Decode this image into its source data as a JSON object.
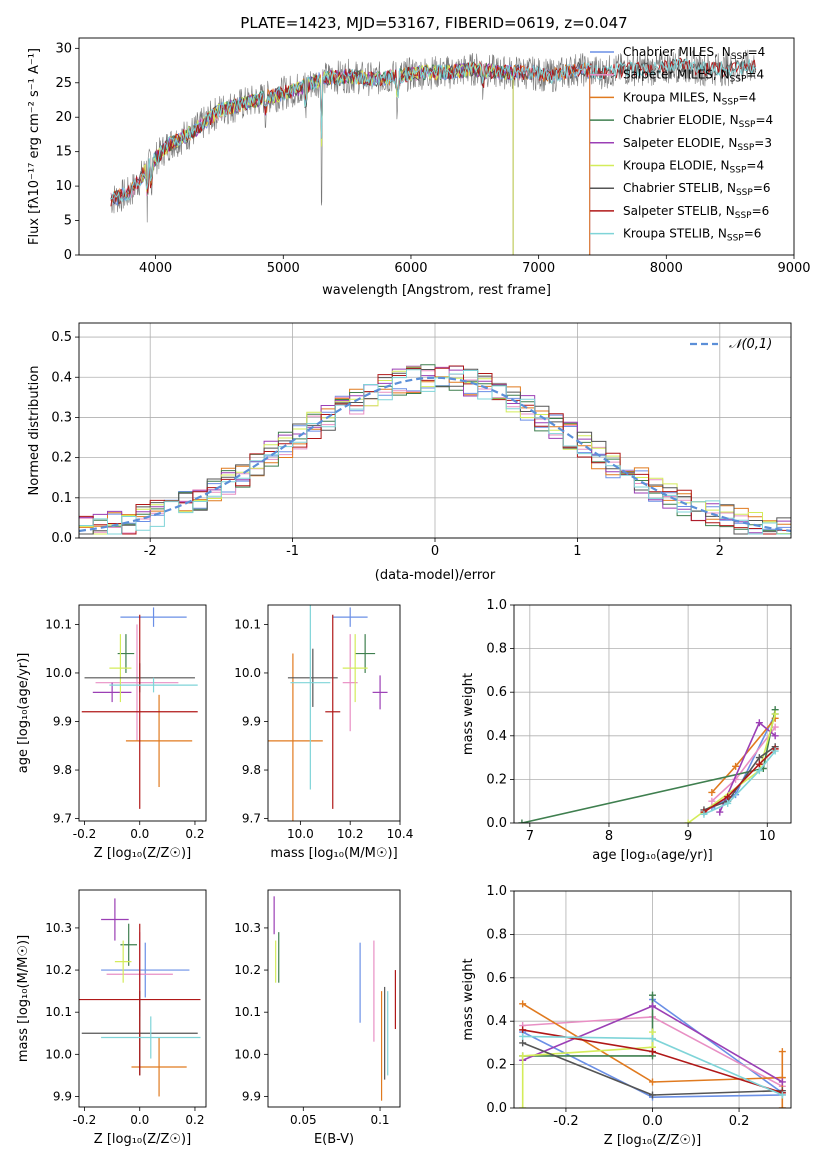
{
  "figure_title": "PLATE=1423, MJD=53167, FIBERID=0619, z=0.047",
  "colors": {
    "Chabrier MILES": "#6a8fe6",
    "Salpeter MILES": "#e88fc4",
    "Kroupa MILES": "#e07a1f",
    "Chabrier ELODIE": "#3f7f4f",
    "Salpeter ELODIE": "#9b3fb5",
    "Kroupa ELODIE": "#d4ec5a",
    "Chabrier STELIB": "#555555",
    "Salpeter STELIB": "#b01818",
    "Kroupa STELIB": "#7fd4d8"
  },
  "chart_data": [
    {
      "id": "spectrum",
      "type": "line",
      "title": "PLATE=1423, MJD=53167, FIBERID=0619, z=0.047",
      "xlabel": "wavelength [Angstrom, rest frame]",
      "ylabel": "Flux [fλ10⁻¹⁷ erg cm⁻² s⁻¹ A⁻¹]",
      "xlim": [
        3400,
        9000
      ],
      "ylim": [
        0,
        31.5
      ],
      "xticks": [
        4000,
        5000,
        6000,
        7000,
        8000,
        9000
      ],
      "yticks": [
        0,
        5,
        10,
        15,
        20,
        25,
        30
      ],
      "legend_position": "upper-right",
      "legend": [
        {
          "model": "Chabrier MILES",
          "label": "Chabrier MILES, N",
          "sub": "SSP",
          "suffix": "=4"
        },
        {
          "model": "Salpeter MILES",
          "label": "Salpeter MILES, N",
          "sub": "SSP",
          "suffix": "=4"
        },
        {
          "model": "Kroupa MILES",
          "label": "Kroupa MILES, N",
          "sub": "SSP",
          "suffix": "=4"
        },
        {
          "model": "Chabrier ELODIE",
          "label": "Chabrier ELODIE, N",
          "sub": "SSP",
          "suffix": "=4"
        },
        {
          "model": "Salpeter ELODIE",
          "label": "Salpeter ELODIE, N",
          "sub": "SSP",
          "suffix": "=3"
        },
        {
          "model": "Kroupa ELODIE",
          "label": "Kroupa ELODIE, N",
          "sub": "SSP",
          "suffix": "=4"
        },
        {
          "model": "Chabrier STELIB",
          "label": "Chabrier STELIB, N",
          "sub": "SSP",
          "suffix": "=6"
        },
        {
          "model": "Salpeter STELIB",
          "label": "Salpeter STELIB, N",
          "sub": "SSP",
          "suffix": "=6"
        },
        {
          "model": "Kroupa STELIB",
          "label": "Kroupa STELIB, N",
          "sub": "SSP",
          "suffix": "=6"
        }
      ],
      "continuum": {
        "x": [
          3650,
          3800,
          3950,
          4100,
          4300,
          4500,
          4700,
          4900,
          5100,
          5300,
          5500,
          5700,
          5900,
          6100,
          6300,
          6500,
          6700,
          6900,
          7100,
          7300,
          7500,
          7700,
          7900,
          8100,
          8300,
          8500,
          8700
        ],
        "y": [
          8,
          9,
          13,
          16,
          18,
          21,
          22,
          23,
          24,
          25.5,
          26,
          25.5,
          26,
          26.5,
          26.5,
          27,
          26.5,
          26.5,
          26,
          27,
          26.5,
          27,
          27,
          27.5,
          27,
          27,
          27.5
        ]
      },
      "model_extent": {
        "Chabrier MILES": [
          3650,
          7400
        ],
        "Salpeter MILES": [
          3650,
          7400
        ],
        "Kroupa MILES": [
          3650,
          7400
        ],
        "Chabrier ELODIE": [
          3900,
          6800
        ],
        "Salpeter ELODIE": [
          3900,
          6800
        ],
        "Kroupa ELODIE": [
          3900,
          6800
        ],
        "Chabrier STELIB": [
          3650,
          8700
        ],
        "Salpeter STELIB": [
          3650,
          8700
        ],
        "Kroupa STELIB": [
          3650,
          8700
        ]
      },
      "absorption_features": [
        {
          "x": 3934,
          "depth": 6
        },
        {
          "x": 3968,
          "depth": 5
        },
        {
          "x": 4861,
          "depth": 3
        },
        {
          "x": 5175,
          "depth": 4
        },
        {
          "x": 5300,
          "depth": 18
        },
        {
          "x": 5893,
          "depth": 5
        },
        {
          "x": 6563,
          "depth": 3
        }
      ]
    },
    {
      "id": "residuals",
      "type": "histogram",
      "xlabel": "(data-model)/error",
      "ylabel": "Normed distribution",
      "xlim": [
        -2.5,
        2.5
      ],
      "ylim": [
        0,
        0.535
      ],
      "xticks": [
        -2,
        -1,
        0,
        1,
        2
      ],
      "yticks": [
        0,
        0.1,
        0.2,
        0.3,
        0.4,
        0.5
      ],
      "bin_width": 0.1,
      "reference_curve": {
        "label": "𝒩(0,1)",
        "mean": 0,
        "sigma": 1,
        "legend_position": "upper-right"
      }
    },
    {
      "id": "age-vs-Z",
      "type": "errorbar",
      "xlabel": "Z [log₁₀(Z/Z☉)]",
      "ylabel": "age  [log₁₀(age/yr)]",
      "xlim": [
        -0.22,
        0.24
      ],
      "ylim": [
        9.695,
        10.14
      ],
      "xticks": [
        -0.2,
        0.0,
        0.2
      ],
      "yticks": [
        9.7,
        9.8,
        9.9,
        10.0,
        10.1
      ],
      "points": [
        {
          "model": "Chabrier MILES",
          "x": 0.05,
          "xerr": 0.12,
          "y": 10.115,
          "yerr": 0.02
        },
        {
          "model": "Salpeter MILES",
          "x": -0.01,
          "xerr": 0.15,
          "y": 9.98,
          "yerr": 0.12
        },
        {
          "model": "Kroupa MILES",
          "x": 0.07,
          "xerr": 0.12,
          "y": 9.86,
          "yerr": 0.095
        },
        {
          "model": "Chabrier ELODIE",
          "x": -0.05,
          "xerr": 0.03,
          "y": 10.04,
          "yerr": 0.04
        },
        {
          "model": "Salpeter ELODIE",
          "x": -0.1,
          "xerr": 0.07,
          "y": 9.96,
          "yerr": 0.02
        },
        {
          "model": "Kroupa ELODIE",
          "x": -0.07,
          "xerr": 0.04,
          "y": 10.01,
          "yerr": 0.07
        },
        {
          "model": "Chabrier STELIB",
          "x": 0.0,
          "xerr": 0.2,
          "y": 9.99,
          "yerr": 0.03
        },
        {
          "model": "Salpeter STELIB",
          "x": 0.0,
          "xerr": 0.21,
          "y": 9.92,
          "yerr": 0.2
        },
        {
          "model": "Kroupa STELIB",
          "x": 0.05,
          "xerr": 0.16,
          "y": 9.975,
          "yerr": 0.015
        }
      ]
    },
    {
      "id": "age-vs-mass",
      "type": "errorbar",
      "xlabel": "mass [log₁₀(M/M☉)]",
      "xlim": [
        9.87,
        10.4
      ],
      "ylim": [
        9.695,
        10.14
      ],
      "xticks": [
        10.0,
        10.2,
        10.4
      ],
      "yticks": [
        9.7,
        9.8,
        9.9,
        10.0,
        10.1
      ],
      "points": [
        {
          "model": "Chabrier MILES",
          "x": 10.2,
          "xerr": 0.07,
          "y": 10.115,
          "yerr": 0.02
        },
        {
          "model": "Salpeter MILES",
          "x": 10.2,
          "xerr": 0.03,
          "y": 9.98,
          "yerr": 0.1
        },
        {
          "model": "Kroupa MILES",
          "x": 9.97,
          "xerr": 0.12,
          "y": 9.86,
          "yerr": 0.18
        },
        {
          "model": "Chabrier ELODIE",
          "x": 10.26,
          "xerr": 0.04,
          "y": 10.04,
          "yerr": 0.04
        },
        {
          "model": "Salpeter ELODIE",
          "x": 10.32,
          "xerr": 0.03,
          "y": 9.96,
          "yerr": 0.035
        },
        {
          "model": "Kroupa ELODIE",
          "x": 10.22,
          "xerr": 0.05,
          "y": 10.01,
          "yerr": 0.07
        },
        {
          "model": "Chabrier STELIB",
          "x": 10.05,
          "xerr": 0.1,
          "y": 9.99,
          "yerr": 0.06
        },
        {
          "model": "Salpeter STELIB",
          "x": 10.13,
          "xerr": 0.03,
          "y": 9.92,
          "yerr": 0.2
        },
        {
          "model": "Kroupa STELIB",
          "x": 10.04,
          "xerr": 0.08,
          "y": 9.98,
          "yerr": 0.22
        }
      ]
    },
    {
      "id": "massweight-vs-age",
      "type": "line",
      "xlabel": "age  [log₁₀(age/yr)]",
      "ylabel": "mass weight",
      "xlim": [
        6.8,
        10.3
      ],
      "ylim": [
        0,
        1
      ],
      "xticks": [
        7,
        8,
        9,
        10
      ],
      "yticks": [
        0,
        0.2,
        0.4,
        0.6,
        0.8,
        1.0
      ],
      "grid": true,
      "series": [
        {
          "model": "Chabrier MILES",
          "x": [
            9.3,
            9.6,
            10.1
          ],
          "y": [
            0.07,
            0.13,
            0.5
          ]
        },
        {
          "model": "Salpeter MILES",
          "x": [
            9.3,
            9.6,
            10.1
          ],
          "y": [
            0.1,
            0.2,
            0.44
          ]
        },
        {
          "model": "Kroupa MILES",
          "x": [
            9.3,
            9.6,
            10.1
          ],
          "y": [
            0.14,
            0.26,
            0.48
          ]
        },
        {
          "model": "Chabrier ELODIE",
          "x": [
            6.9,
            9.95,
            10.1
          ],
          "y": [
            0.0,
            0.25,
            0.52
          ]
        },
        {
          "model": "Salpeter ELODIE",
          "x": [
            9.4,
            9.9,
            10.1
          ],
          "y": [
            0.05,
            0.46,
            0.4
          ]
        },
        {
          "model": "Kroupa ELODIE",
          "x": [
            9.0,
            9.9,
            10.1
          ],
          "y": [
            0.0,
            0.24,
            0.5
          ]
        },
        {
          "model": "Chabrier STELIB",
          "x": [
            9.2,
            9.5,
            9.9,
            10.1
          ],
          "y": [
            0.06,
            0.1,
            0.3,
            0.35
          ]
        },
        {
          "model": "Salpeter STELIB",
          "x": [
            9.2,
            9.5,
            9.9,
            10.1
          ],
          "y": [
            0.05,
            0.12,
            0.27,
            0.34
          ]
        },
        {
          "model": "Kroupa STELIB",
          "x": [
            9.2,
            9.5,
            9.9,
            10.1
          ],
          "y": [
            0.04,
            0.09,
            0.24,
            0.33
          ]
        }
      ]
    },
    {
      "id": "mass-vs-Z",
      "type": "errorbar",
      "xlabel": "Z [log₁₀(Z/Z☉)]",
      "ylabel": "mass [log₁₀(M/M☉)]",
      "xlim": [
        -0.22,
        0.24
      ],
      "ylim": [
        9.875,
        10.39
      ],
      "xticks": [
        -0.2,
        0.0,
        0.2
      ],
      "yticks": [
        9.9,
        10.0,
        10.1,
        10.2,
        10.3
      ],
      "points": [
        {
          "model": "Chabrier MILES",
          "x": 0.02,
          "xerr": 0.16,
          "y": 10.2,
          "yerr": 0.065
        },
        {
          "model": "Salpeter MILES",
          "x": 0.0,
          "xerr": 0.12,
          "y": 10.19,
          "yerr": 0.1
        },
        {
          "model": "Kroupa MILES",
          "x": 0.07,
          "xerr": 0.1,
          "y": 9.97,
          "yerr": 0.07
        },
        {
          "model": "Chabrier ELODIE",
          "x": -0.04,
          "xerr": 0.03,
          "y": 10.26,
          "yerr": 0.05
        },
        {
          "model": "Salpeter ELODIE",
          "x": -0.09,
          "xerr": 0.05,
          "y": 10.32,
          "yerr": 0.05
        },
        {
          "model": "Kroupa ELODIE",
          "x": -0.06,
          "xerr": 0.03,
          "y": 10.22,
          "yerr": 0.05
        },
        {
          "model": "Chabrier STELIB",
          "x": 0.0,
          "xerr": 0.21,
          "y": 10.05,
          "yerr": 0.1
        },
        {
          "model": "Salpeter STELIB",
          "x": 0.0,
          "xerr": 0.22,
          "y": 10.13,
          "yerr": 0.18
        },
        {
          "model": "Kroupa STELIB",
          "x": 0.04,
          "xerr": 0.18,
          "y": 10.04,
          "yerr": 0.05
        }
      ]
    },
    {
      "id": "mass-vs-ebv",
      "type": "errorbar",
      "xlabel": "E(B-V)",
      "xlim": [
        0.027,
        0.113
      ],
      "ylim": [
        9.875,
        10.39
      ],
      "xticks": [
        0.05,
        0.1
      ],
      "yticks": [
        9.9,
        10.0,
        10.1,
        10.2,
        10.3
      ],
      "points": [
        {
          "model": "Chabrier MILES",
          "x": 0.087,
          "xerr": 0,
          "y": 10.17,
          "yerr": 0.095
        },
        {
          "model": "Salpeter MILES",
          "x": 0.096,
          "xerr": 0,
          "y": 10.15,
          "yerr": 0.12
        },
        {
          "model": "Kroupa MILES",
          "x": 0.101,
          "xerr": 0,
          "y": 10.02,
          "yerr": 0.13
        },
        {
          "model": "Chabrier ELODIE",
          "x": 0.034,
          "xerr": 0,
          "y": 10.23,
          "yerr": 0.06
        },
        {
          "model": "Salpeter ELODIE",
          "x": 0.031,
          "xerr": 0,
          "y": 10.33,
          "yerr": 0.045
        },
        {
          "model": "Kroupa ELODIE",
          "x": 0.032,
          "xerr": 0,
          "y": 10.22,
          "yerr": 0.05
        },
        {
          "model": "Chabrier STELIB",
          "x": 0.103,
          "xerr": 0,
          "y": 10.05,
          "yerr": 0.11
        },
        {
          "model": "Salpeter STELIB",
          "x": 0.11,
          "xerr": 0,
          "y": 10.13,
          "yerr": 0.07
        },
        {
          "model": "Kroupa STELIB",
          "x": 0.105,
          "xerr": 0,
          "y": 10.05,
          "yerr": 0.1
        }
      ]
    },
    {
      "id": "massweight-vs-Z",
      "type": "line",
      "xlabel": "Z [log₁₀(Z/Z☉)]",
      "ylabel": "mass weight",
      "xlim": [
        -0.32,
        0.32
      ],
      "ylim": [
        0,
        1
      ],
      "xticks": [
        -0.2,
        0.0,
        0.2
      ],
      "yticks": [
        0,
        0.2,
        0.4,
        0.6,
        0.8,
        1.0
      ],
      "grid": true,
      "series": [
        {
          "model": "Chabrier MILES",
          "x": [
            -0.3,
            0.0,
            0.3
          ],
          "y": [
            0.35,
            0.05,
            0.06
          ]
        },
        {
          "model": "Chabrier MILES",
          "x": [
            0.0,
            0.3
          ],
          "y": [
            0.5,
            0.07
          ]
        },
        {
          "model": "Salpeter MILES",
          "x": [
            -0.3,
            0.0,
            0.3
          ],
          "y": [
            0.38,
            0.42,
            0.1
          ]
        },
        {
          "model": "Kroupa MILES",
          "x": [
            -0.3,
            0.0,
            0.3
          ],
          "y": [
            0.48,
            0.12,
            0.14
          ]
        },
        {
          "model": "Kroupa MILES",
          "x": [
            0.3,
            0.3
          ],
          "y": [
            0.0,
            0.26
          ]
        },
        {
          "model": "Chabrier ELODIE",
          "x": [
            -0.3,
            0.0,
            0.0
          ],
          "y": [
            0.24,
            0.24,
            0.52
          ]
        },
        {
          "model": "Salpeter ELODIE",
          "x": [
            -0.3,
            0.0,
            0.3
          ],
          "y": [
            0.22,
            0.47,
            0.12
          ]
        },
        {
          "model": "Kroupa ELODIE",
          "x": [
            -0.3,
            -0.3,
            0.0,
            0.0
          ],
          "y": [
            0.0,
            0.24,
            0.28,
            0.35
          ]
        },
        {
          "model": "Chabrier STELIB",
          "x": [
            -0.3,
            0.0,
            0.3
          ],
          "y": [
            0.3,
            0.06,
            0.08
          ]
        },
        {
          "model": "Salpeter STELIB",
          "x": [
            -0.3,
            0.0,
            0.3
          ],
          "y": [
            0.36,
            0.26,
            0.07
          ]
        },
        {
          "model": "Kroupa STELIB",
          "x": [
            -0.3,
            0.0,
            0.3
          ],
          "y": [
            0.33,
            0.32,
            0.06
          ]
        }
      ]
    }
  ]
}
